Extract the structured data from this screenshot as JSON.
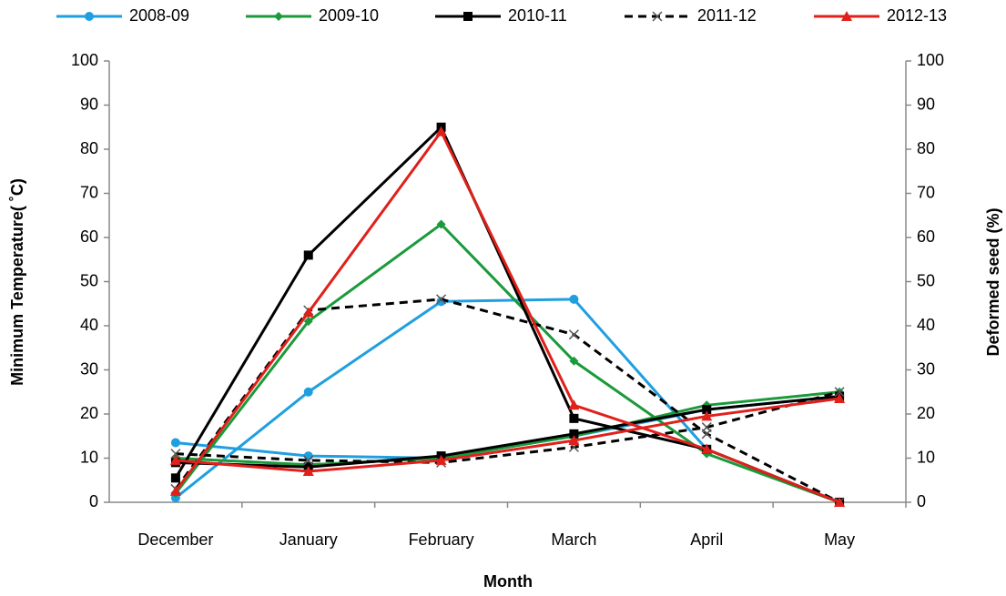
{
  "chart_data": {
    "type": "line",
    "xlabel": "Month",
    "ylabel": "Minimum Temperature( ˚C)",
    "y2label": "Deformed seed (%)",
    "categories": [
      "December",
      "January",
      "February",
      "March",
      "April",
      "May"
    ],
    "ylim": [
      0,
      100
    ],
    "yticks": [
      0,
      10,
      20,
      30,
      40,
      50,
      60,
      70,
      80,
      90,
      100
    ],
    "y2lim": [
      0,
      100
    ],
    "y2ticks": [
      0,
      10,
      20,
      30,
      40,
      50,
      60,
      70,
      80,
      90,
      100
    ],
    "legend": "top",
    "series": [
      {
        "name": "2008-09",
        "color": "#1f9fe0",
        "marker": "circle",
        "dash": false,
        "values": [
          13.5,
          10.5,
          10,
          15,
          21,
          24
        ],
        "y2_values": [
          1,
          25,
          45.5,
          46,
          12,
          0
        ]
      },
      {
        "name": "2009-10",
        "color": "#1a9a3a",
        "marker": "diamond",
        "dash": false,
        "values": [
          10,
          8.5,
          10,
          15,
          22,
          25
        ],
        "y2_values": [
          2,
          41,
          63,
          32,
          11,
          0
        ]
      },
      {
        "name": "2010-11",
        "color": "#000000",
        "marker": "square",
        "dash": false,
        "values": [
          9,
          8,
          10.5,
          15.5,
          21,
          24
        ],
        "y2_values": [
          5.5,
          56,
          85,
          19,
          12,
          0
        ]
      },
      {
        "name": "2011-12",
        "color": "#000000",
        "marker": "x",
        "dash": true,
        "values": [
          11,
          9.5,
          9,
          12.5,
          17,
          25
        ],
        "y2_values": [
          3,
          43.5,
          46,
          38,
          15.5,
          0
        ]
      },
      {
        "name": "2012-13",
        "color": "#e0201a",
        "marker": "triangle",
        "dash": false,
        "values": [
          9.5,
          7,
          9.5,
          14,
          19.5,
          23.5
        ],
        "y2_values": [
          2.5,
          43,
          84,
          22,
          12,
          0
        ]
      }
    ]
  }
}
